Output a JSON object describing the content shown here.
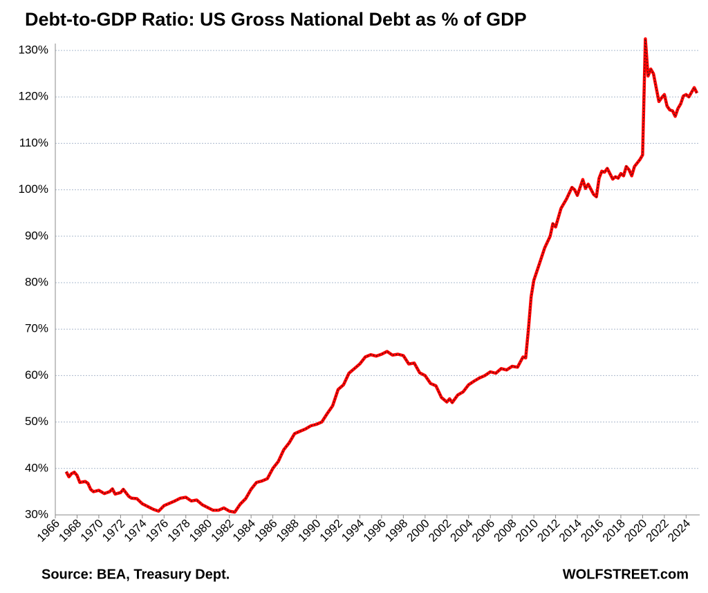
{
  "chart_data": {
    "type": "line",
    "title": "Debt-to-GDP Ratio: US Gross National Debt as % of GDP",
    "source": "Source: BEA, Treasury Dept.",
    "credit": "WOLFSTREET.com",
    "xlim": [
      1966,
      2025.25
    ],
    "xticks": [
      1966,
      1968,
      1970,
      1972,
      1974,
      1976,
      1978,
      1980,
      1982,
      1984,
      1986,
      1988,
      1990,
      1992,
      1994,
      1996,
      1998,
      2000,
      2002,
      2004,
      2006,
      2008,
      2010,
      2012,
      2014,
      2016,
      2018,
      2020,
      2022,
      2024
    ],
    "ylim": [
      30,
      130
    ],
    "yticks": [
      {
        "value": 30,
        "label": "30%"
      },
      {
        "value": 40,
        "label": "40%"
      },
      {
        "value": 50,
        "label": "50%"
      },
      {
        "value": 60,
        "label": "60%"
      },
      {
        "value": 70,
        "label": "70%"
      },
      {
        "value": 80,
        "label": "80%"
      },
      {
        "value": 90,
        "label": "90%"
      },
      {
        "value": 100,
        "label": "100%"
      },
      {
        "value": 110,
        "label": "110%"
      },
      {
        "value": 120,
        "label": "120%"
      },
      {
        "value": 130,
        "label": "130%"
      }
    ],
    "grid": true,
    "x": [
      1967,
      1967.25,
      1967.5,
      1967.75,
      1968,
      1968.25,
      1968.75,
      1969,
      1969.25,
      1969.5,
      1970,
      1970.5,
      1971,
      1971.25,
      1971.5,
      1972,
      1972.25,
      1972.75,
      1973,
      1973.5,
      1974,
      1974.5,
      1975,
      1975.5,
      1976,
      1976.5,
      1977,
      1977.5,
      1978,
      1978.5,
      1979,
      1979.5,
      1980,
      1980.5,
      1981,
      1981.5,
      1982,
      1982.5,
      1983,
      1983.5,
      1984,
      1984.5,
      1985,
      1985.5,
      1986,
      1986.5,
      1987,
      1987.5,
      1988,
      1988.5,
      1989,
      1989.5,
      1990,
      1990.5,
      1991,
      1991.5,
      1992,
      1992.5,
      1993,
      1993.5,
      1994,
      1994.5,
      1995,
      1995.5,
      1996,
      1996.5,
      1997,
      1997.5,
      1998,
      1998.5,
      1999,
      1999.5,
      2000,
      2000.5,
      2001,
      2001.5,
      2002,
      2002.25,
      2002.5,
      2003,
      2003.5,
      2004,
      2004.5,
      2005,
      2005.5,
      2006,
      2006.5,
      2007,
      2007.5,
      2008,
      2008.5,
      2009,
      2009.25,
      2009.5,
      2009.75,
      2010,
      2010.5,
      2011,
      2011.5,
      2011.75,
      2012,
      2012.5,
      2013,
      2013.5,
      2013.75,
      2014,
      2014.5,
      2014.75,
      2015,
      2015.5,
      2015.75,
      2016,
      2016.25,
      2016.5,
      2016.75,
      2017.25,
      2017.5,
      2017.75,
      2018,
      2018.25,
      2018.5,
      2018.75,
      2019,
      2019.25,
      2019.75,
      2020,
      2020.25,
      2020.5,
      2020.75,
      2021,
      2021.5,
      2021.75,
      2022,
      2022.25,
      2022.5,
      2022.75,
      2023,
      2023.25,
      2023.5,
      2023.75,
      2024,
      2024.25,
      2024.5,
      2024.75,
      2025
    ],
    "series": [
      {
        "name": "Debt-to-GDP",
        "color": "#ff0000",
        "values": [
          39.3,
          38.2,
          38.9,
          39.2,
          38.5,
          37.0,
          37.2,
          36.8,
          35.5,
          35.0,
          35.3,
          34.6,
          35.0,
          35.6,
          34.5,
          34.8,
          35.5,
          34.0,
          33.6,
          33.5,
          32.4,
          31.8,
          31.2,
          30.8,
          32.0,
          32.5,
          33.0,
          33.6,
          33.8,
          33.0,
          33.2,
          32.2,
          31.6,
          31.0,
          31.0,
          31.5,
          30.8,
          30.6,
          32.3,
          33.5,
          35.5,
          37.0,
          37.3,
          37.8,
          40.0,
          41.5,
          44.0,
          45.5,
          47.5,
          48.0,
          48.5,
          49.2,
          49.5,
          50.0,
          51.8,
          53.5,
          57.0,
          58.0,
          60.5,
          61.5,
          62.5,
          64.0,
          64.5,
          64.2,
          64.6,
          65.2,
          64.4,
          64.6,
          64.3,
          62.5,
          62.7,
          60.6,
          60.0,
          58.3,
          57.8,
          55.3,
          54.3,
          55.0,
          54.2,
          55.8,
          56.5,
          58.0,
          58.8,
          59.5,
          60.0,
          60.8,
          60.5,
          61.5,
          61.2,
          62.0,
          61.8,
          64.0,
          63.8,
          70.0,
          77.0,
          80.5,
          84.0,
          87.5,
          90.0,
          92.7,
          92.0,
          96.0,
          98.0,
          100.5,
          100.0,
          98.8,
          102.2,
          100.3,
          101.2,
          99.0,
          98.5,
          102.5,
          104.0,
          103.8,
          104.6,
          102.3,
          102.8,
          102.5,
          103.5,
          103.0,
          105.0,
          104.3,
          103.0,
          105.0,
          106.5,
          107.5,
          132.5,
          124.5,
          126.0,
          125.0,
          119.0,
          119.8,
          120.5,
          118.0,
          117.2,
          117.0,
          115.8,
          117.5,
          118.5,
          120.2,
          120.5,
          120.0,
          121.0,
          122.0,
          120.8
        ]
      }
    ]
  }
}
